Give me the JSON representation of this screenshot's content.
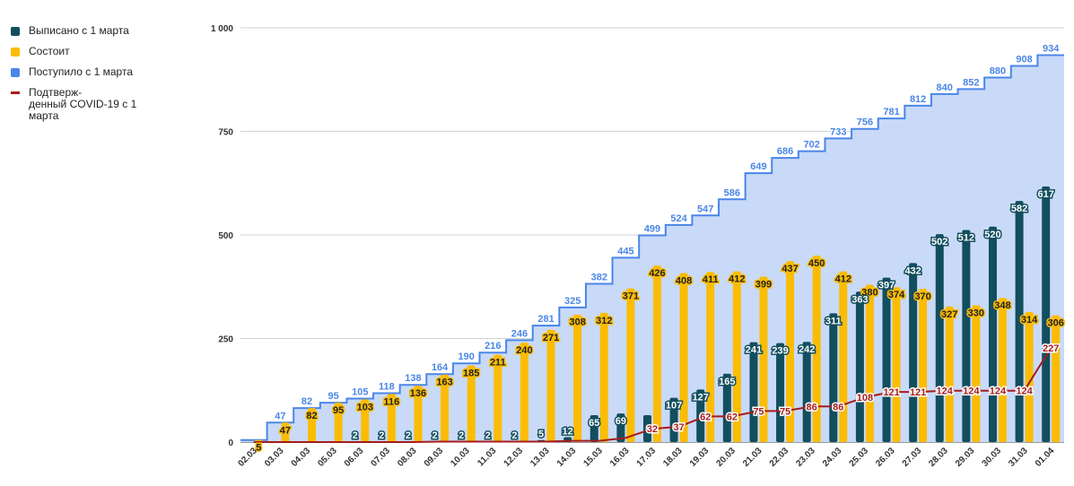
{
  "chart_data": {
    "type": "bar",
    "categories": [
      "02.03",
      "03.03",
      "04.03",
      "05.03",
      "06.03",
      "07.03",
      "08.03",
      "09.03",
      "10.03",
      "11.03",
      "12.03",
      "13.03",
      "14.03",
      "15.03",
      "16.03",
      "17.03",
      "18.03",
      "19.03",
      "20.03",
      "21.03",
      "22.03",
      "23.03",
      "24.03",
      "25.03",
      "26.03",
      "27.03",
      "28.03",
      "29.03",
      "30.03",
      "31.03",
      "01.04"
    ],
    "ylim": [
      0,
      1000
    ],
    "yticks": [
      {
        "value": 0,
        "label": "0"
      },
      {
        "value": 250,
        "label": "250"
      },
      {
        "value": 500,
        "label": "500"
      },
      {
        "value": 750,
        "label": "750"
      },
      {
        "value": 1000,
        "label": "1 000"
      }
    ],
    "grid": true,
    "legend_position": "left",
    "series": [
      {
        "name": "Выписано с 1 марта",
        "type": "bar",
        "color": "#124e5e",
        "values": [
          0,
          0,
          0,
          0,
          2,
          2,
          2,
          2,
          2,
          2,
          2,
          5,
          12,
          65,
          69,
          65,
          107,
          127,
          165,
          241,
          239,
          242,
          311,
          363,
          397,
          432,
          502,
          512,
          520,
          582,
          617
        ],
        "labels": [
          "",
          "",
          "",
          "",
          "2",
          "2",
          "2",
          "2",
          "2",
          "2",
          "2",
          "5",
          "12",
          "65",
          "69",
          "",
          "107",
          "127",
          "165",
          "241",
          "239",
          "242",
          "311",
          "363",
          "397",
          "432",
          "502",
          "512",
          "520",
          "582",
          "617"
        ]
      },
      {
        "name": "Состоит",
        "type": "bar",
        "color": "#fbbc04",
        "values": [
          5,
          47,
          82,
          95,
          103,
          116,
          136,
          163,
          185,
          211,
          240,
          271,
          308,
          312,
          371,
          426,
          408,
          411,
          412,
          399,
          437,
          450,
          412,
          380,
          374,
          370,
          327,
          330,
          348,
          314,
          306
        ],
        "labels": [
          "5",
          "47",
          "82",
          "95",
          "103",
          "116",
          "136",
          "163",
          "185",
          "211",
          "240",
          "271",
          "308",
          "312",
          "371",
          "426",
          "408",
          "411",
          "412",
          "399",
          "437",
          "450",
          "412",
          "380",
          "374",
          "370",
          "327",
          "330",
          "348",
          "314",
          "306"
        ]
      },
      {
        "name": "Поступило с 1 марта",
        "type": "area",
        "color": "#4a86e8",
        "values": [
          5,
          47,
          82,
          95,
          105,
          118,
          138,
          164,
          190,
          216,
          246,
          281,
          325,
          382,
          445,
          499,
          524,
          547,
          586,
          649,
          686,
          702,
          733,
          756,
          781,
          812,
          840,
          852,
          880,
          908,
          934
        ],
        "labels": [
          "",
          "47",
          "82",
          "95",
          "105",
          "118",
          "138",
          "164",
          "190",
          "216",
          "246",
          "281",
          "325",
          "382",
          "445",
          "499",
          "524",
          "547",
          "586",
          "649",
          "686",
          "702",
          "733",
          "756",
          "781",
          "812",
          "840",
          "852",
          "880",
          "908",
          "934"
        ]
      },
      {
        "name": "Подтверж-\nденный COVID-19 с 1\nмарта",
        "type": "line",
        "color": "#a61c1c",
        "values": [
          0,
          0,
          0,
          0,
          0,
          0,
          0,
          1,
          1,
          1,
          1,
          1,
          3,
          3,
          10,
          32,
          37,
          62,
          62,
          75,
          75,
          86,
          86,
          108,
          121,
          121,
          124,
          124,
          124,
          124,
          227
        ],
        "labels": [
          "",
          "",
          "",
          "",
          "",
          "",
          "",
          "",
          "",
          "",
          "",
          "",
          "",
          "",
          "",
          "32",
          "37",
          "62",
          "62",
          "75",
          "75",
          "86",
          "86",
          "108",
          "121",
          "121",
          "124",
          "124",
          "124",
          "124",
          "227"
        ]
      }
    ]
  }
}
